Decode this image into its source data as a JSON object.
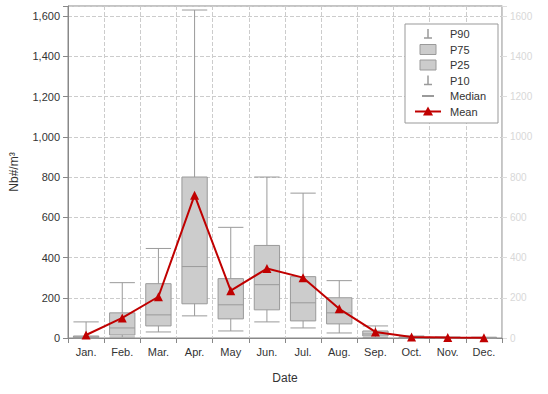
{
  "chart_data": {
    "type": "boxplot",
    "x_label": "Date",
    "y_label": "Nb#/m³",
    "categories": [
      "Jan.",
      "Feb.",
      "Mar.",
      "Apr.",
      "May",
      "Jun.",
      "Jul.",
      "Aug.",
      "Sep.",
      "Oct.",
      "Nov.",
      "Dec."
    ],
    "series": [
      {
        "name": "P90",
        "color": "#9a9a9a",
        "values": [
          80,
          275,
          445,
          1630,
          550,
          800,
          720,
          285,
          60,
          10,
          5,
          4
        ]
      },
      {
        "name": "P75",
        "color": "#cccccc",
        "values": [
          10,
          125,
          270,
          800,
          295,
          460,
          305,
          200,
          35,
          4,
          2,
          2
        ]
      },
      {
        "name": "P25",
        "color": "#cccccc",
        "values": [
          2,
          15,
          60,
          170,
          95,
          140,
          85,
          70,
          10,
          1,
          0,
          0
        ]
      },
      {
        "name": "P10",
        "color": "#9a9a9a",
        "values": [
          0,
          5,
          30,
          110,
          35,
          80,
          50,
          25,
          2,
          0,
          0,
          0
        ]
      },
      {
        "name": "Median",
        "color": "#9a9a9a",
        "values": [
          5,
          50,
          115,
          355,
          165,
          265,
          175,
          125,
          20,
          2,
          1,
          1
        ]
      },
      {
        "name": "Mean",
        "type": "line",
        "marker": "triangle",
        "color": "#c00000",
        "values": [
          15,
          100,
          205,
          710,
          235,
          345,
          300,
          145,
          30,
          5,
          2,
          1
        ]
      }
    ],
    "ylim": [
      0,
      1650
    ],
    "yticks": [
      0,
      200,
      400,
      600,
      800,
      {
        "value": 1000,
        "label": "1,000"
      },
      {
        "value": 1200,
        "label": "1,200"
      },
      {
        "value": 1400,
        "label": "1,400"
      },
      {
        "value": 1600,
        "label": "1,600"
      }
    ],
    "y2lim": [
      0,
      1650
    ],
    "y2ticks": [
      0,
      200,
      400,
      600,
      800,
      1000,
      1200,
      1400,
      1600
    ],
    "grid": true,
    "legend": "top-right"
  }
}
